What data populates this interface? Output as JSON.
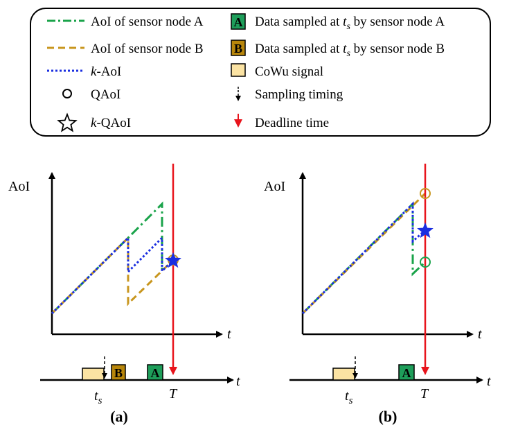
{
  "legend": {
    "items_left": [
      {
        "id": "aoi-a",
        "label": "AoI of sensor node A",
        "symbol": "dash-dot-line",
        "color": "#1aa34a"
      },
      {
        "id": "aoi-b",
        "label": "AoI of sensor node B",
        "symbol": "dashed-line",
        "color": "#c8961e"
      },
      {
        "id": "k-aoi",
        "label_italic": "k",
        "label_rest": "-AoI",
        "symbol": "dotted-line",
        "color": "#1a2ee0"
      },
      {
        "id": "qaoi",
        "label": "QAoI",
        "symbol": "circle-icon"
      },
      {
        "id": "k-qaoi",
        "label_italic": "k",
        "label_rest": "-QAoI",
        "symbol": "star-icon"
      }
    ],
    "items_right": [
      {
        "id": "data-a",
        "box_letter": "A",
        "label_pre": "Data sampled at ",
        "label_var": "t",
        "label_sub": "s",
        "label_post": " by sensor node A",
        "color": "#1e9e5a"
      },
      {
        "id": "data-b",
        "box_letter": "B",
        "label_pre": "Data sampled at ",
        "label_var": "t",
        "label_sub": "s",
        "label_post": " by sensor node B",
        "color": "#b8860b"
      },
      {
        "id": "cowu",
        "label": "CoWu signal",
        "color": "#fbe3a3"
      },
      {
        "id": "sampling",
        "label": "Sampling timing"
      },
      {
        "id": "deadline",
        "label": "Deadline time",
        "color": "#e8141c"
      }
    ]
  },
  "panel_a": {
    "ylabel": "AoI",
    "xlabel": "t",
    "ts_var": "t",
    "ts_sub": "s",
    "deadline_label": "T",
    "box_b": "B",
    "box_a": "A",
    "caption": "(a)"
  },
  "panel_b": {
    "ylabel": "AoI",
    "xlabel": "t",
    "ts_var": "t",
    "ts_sub": "s",
    "deadline_label": "T",
    "box_a": "A",
    "caption": "(b)"
  }
}
